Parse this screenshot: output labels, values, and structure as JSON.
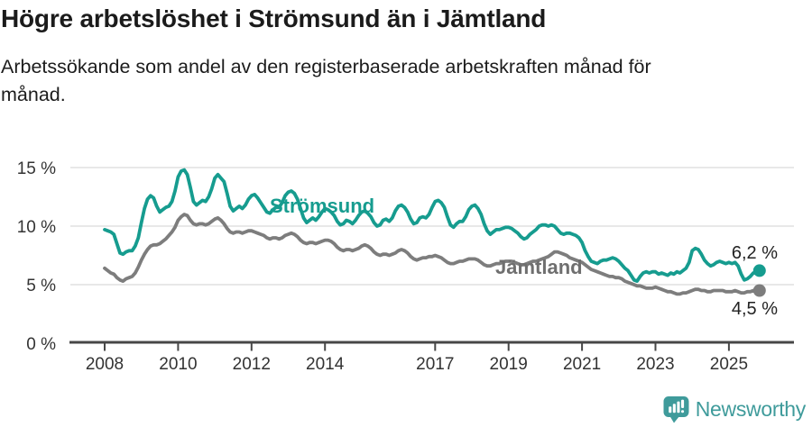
{
  "header": {
    "title": "Högre arbetslöshet i Strömsund än i Jämtland",
    "subtitle_line1": "Arbetssökande som andel av den registerbaserade arbetskraften månad för",
    "subtitle_line2": "månad."
  },
  "footer": {
    "brand": "Newsworthy",
    "logo_icon": "newsworthy-speech-bubble-barchart-icon"
  },
  "colors": {
    "stromsund_teal": "#169c8f",
    "jamtland_gray": "#7d7d7d",
    "axis": "#474747",
    "grid": "#d9d9d9",
    "title_text": "#1b1b1b",
    "brand_teal": "#3f9b9b"
  },
  "chart_data": {
    "type": "line",
    "title": "Högre arbetslöshet i Strömsund än i Jämtland",
    "subtitle": "Arbetssökande som andel av den registerbaserade arbetskraften månad för månad.",
    "unit": "%",
    "frequency": "monthly",
    "x_start": "2008-01",
    "x_end": "2025-11",
    "ylim": [
      0,
      15
    ],
    "grid": "horizontal",
    "legend_position": "inline-labels",
    "y_ticks": [
      {
        "value": 0,
        "label": "0 %"
      },
      {
        "value": 5,
        "label": "5 %"
      },
      {
        "value": 10,
        "label": "10 %"
      },
      {
        "value": 15,
        "label": "15 %"
      }
    ],
    "x_tick_years": [
      2008,
      2010,
      2012,
      2014,
      2017,
      2019,
      2021,
      2023,
      2025
    ],
    "x_tick_labels": [
      "2008",
      "2010",
      "2012",
      "2014",
      "2017",
      "2019",
      "2021",
      "2023",
      "2025"
    ],
    "series": [
      {
        "name": "Strömsund",
        "color": "#169c8f",
        "end_label": "6,2 %",
        "end_value": 6.2,
        "values": [
          9.7,
          9.6,
          9.5,
          9.3,
          8.5,
          7.7,
          7.6,
          7.8,
          7.9,
          7.9,
          8.3,
          9.0,
          10.3,
          11.5,
          12.3,
          12.6,
          12.4,
          11.7,
          11.2,
          11.4,
          11.6,
          11.7,
          12.1,
          13.0,
          14.2,
          14.7,
          14.8,
          14.4,
          13.3,
          12.1,
          11.8,
          12.0,
          12.2,
          12.1,
          12.5,
          13.2,
          14.1,
          14.4,
          14.1,
          13.8,
          12.8,
          11.7,
          11.3,
          11.5,
          11.7,
          11.5,
          11.8,
          12.3,
          12.6,
          12.7,
          12.4,
          12.0,
          11.6,
          11.2,
          11.1,
          11.4,
          11.6,
          11.6,
          12.0,
          12.6,
          12.9,
          13.0,
          12.8,
          12.3,
          11.5,
          10.7,
          10.3,
          10.5,
          10.7,
          10.5,
          10.8,
          11.2,
          11.5,
          11.4,
          11.2,
          10.9,
          10.4,
          10.1,
          10.2,
          10.5,
          10.4,
          10.2,
          10.5,
          10.9,
          11.2,
          11.3,
          11.1,
          10.8,
          10.3,
          10.0,
          10.1,
          10.5,
          10.6,
          10.4,
          10.7,
          11.3,
          11.7,
          11.8,
          11.6,
          11.2,
          10.6,
          10.2,
          10.3,
          10.7,
          10.8,
          10.7,
          11.0,
          11.6,
          12.1,
          12.2,
          12.0,
          11.6,
          10.8,
          10.1,
          9.9,
          10.2,
          10.4,
          10.4,
          10.8,
          11.4,
          11.7,
          11.8,
          11.5,
          11.0,
          10.2,
          9.6,
          9.3,
          9.5,
          9.7,
          9.7,
          9.8,
          9.9,
          9.9,
          9.8,
          9.6,
          9.4,
          9.1,
          8.9,
          9.0,
          9.3,
          9.5,
          9.7,
          10.0,
          10.1,
          10.1,
          10.0,
          10.1,
          10.0,
          9.7,
          9.4,
          9.3,
          9.4,
          9.4,
          9.3,
          9.2,
          9.0,
          8.6,
          7.9,
          7.4,
          7.0,
          6.9,
          6.8,
          7.0,
          7.1,
          7.1,
          7.2,
          7.3,
          7.2,
          7.0,
          6.7,
          6.4,
          6.2,
          5.8,
          5.4,
          5.3,
          5.7,
          6.0,
          6.1,
          6.0,
          6.1,
          6.1,
          5.9,
          6.0,
          5.9,
          5.8,
          6.0,
          5.9,
          6.1,
          6.0,
          6.2,
          6.4,
          6.9,
          7.9,
          8.1,
          8.0,
          7.6,
          7.1,
          6.8,
          6.6,
          6.7,
          6.9,
          7.0,
          6.9,
          6.8,
          6.9,
          6.8,
          6.9,
          6.6,
          5.9,
          5.4,
          5.5,
          5.7,
          6.0,
          6.0,
          6.2
        ]
      },
      {
        "name": "Jämtland",
        "color": "#7d7d7d",
        "end_label": "4,5 %",
        "end_value": 4.5,
        "values": [
          6.4,
          6.2,
          6.0,
          5.9,
          5.6,
          5.4,
          5.3,
          5.5,
          5.6,
          5.7,
          6.0,
          6.5,
          7.1,
          7.6,
          8.0,
          8.3,
          8.4,
          8.4,
          8.5,
          8.7,
          8.9,
          9.2,
          9.5,
          9.9,
          10.5,
          10.8,
          11.0,
          10.9,
          10.5,
          10.2,
          10.1,
          10.2,
          10.2,
          10.1,
          10.2,
          10.4,
          10.6,
          10.7,
          10.5,
          10.2,
          9.8,
          9.5,
          9.4,
          9.5,
          9.5,
          9.4,
          9.5,
          9.6,
          9.6,
          9.5,
          9.4,
          9.3,
          9.2,
          9.0,
          8.9,
          9.0,
          9.0,
          8.9,
          9.0,
          9.2,
          9.3,
          9.4,
          9.3,
          9.1,
          8.8,
          8.6,
          8.5,
          8.6,
          8.6,
          8.5,
          8.6,
          8.7,
          8.8,
          8.8,
          8.7,
          8.5,
          8.2,
          8.0,
          7.9,
          8.0,
          8.0,
          7.9,
          8.0,
          8.1,
          8.3,
          8.4,
          8.3,
          8.1,
          7.8,
          7.6,
          7.5,
          7.6,
          7.6,
          7.5,
          7.6,
          7.7,
          7.9,
          8.0,
          7.9,
          7.7,
          7.4,
          7.2,
          7.1,
          7.2,
          7.3,
          7.3,
          7.4,
          7.4,
          7.5,
          7.4,
          7.3,
          7.1,
          6.9,
          6.8,
          6.8,
          6.9,
          7.0,
          7.0,
          7.1,
          7.2,
          7.2,
          7.2,
          7.1,
          6.9,
          6.7,
          6.6,
          6.6,
          6.7,
          6.8,
          6.8,
          6.9,
          7.0,
          7.0,
          7.0,
          6.9,
          6.8,
          6.7,
          6.7,
          6.8,
          6.9,
          7.0,
          7.0,
          7.1,
          7.2,
          7.3,
          7.4,
          7.6,
          7.8,
          7.8,
          7.7,
          7.6,
          7.5,
          7.3,
          7.2,
          7.1,
          7.0,
          6.9,
          6.7,
          6.5,
          6.3,
          6.2,
          6.1,
          6.0,
          5.9,
          5.8,
          5.7,
          5.7,
          5.6,
          5.6,
          5.5,
          5.3,
          5.2,
          5.1,
          5.0,
          4.9,
          4.9,
          4.8,
          4.7,
          4.7,
          4.7,
          4.8,
          4.7,
          4.6,
          4.5,
          4.4,
          4.4,
          4.3,
          4.2,
          4.2,
          4.3,
          4.3,
          4.4,
          4.5,
          4.6,
          4.6,
          4.5,
          4.5,
          4.4,
          4.4,
          4.5,
          4.5,
          4.5,
          4.5,
          4.4,
          4.4,
          4.4,
          4.5,
          4.4,
          4.3,
          4.3,
          4.4,
          4.4,
          4.5,
          4.4,
          4.5
        ]
      }
    ]
  }
}
